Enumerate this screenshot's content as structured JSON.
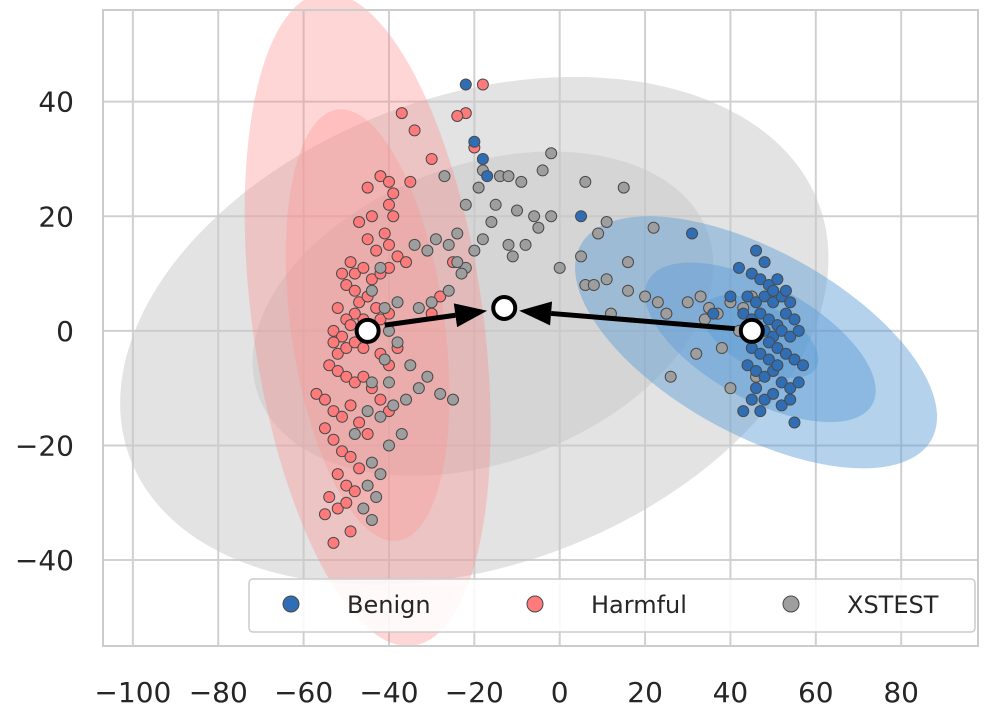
{
  "chart_data": {
    "type": "scatter",
    "title": "",
    "xlabel": "",
    "ylabel": "",
    "xlim": [
      -107,
      98
    ],
    "ylim": [
      -55,
      56
    ],
    "grid": true,
    "x_ticks": [
      -100,
      -80,
      -60,
      -40,
      -20,
      0,
      20,
      40,
      60,
      80
    ],
    "y_ticks": [
      -40,
      -20,
      0,
      20,
      40
    ],
    "x_tick_labels": [
      "−100",
      "−80",
      "−60",
      "−40",
      "−20",
      "0",
      "20",
      "40",
      "60",
      "80"
    ],
    "y_tick_labels": [
      "−40",
      "−20",
      "0",
      "20",
      "40"
    ],
    "legend": {
      "placement": "lower-right",
      "entries": [
        {
          "label": "Benign",
          "color": "#2F6EB5"
        },
        {
          "label": "Harmful",
          "color": "#FF7A7A"
        },
        {
          "label": "XSTEST",
          "color": "#9E9E9E"
        }
      ]
    },
    "ellipses": [
      {
        "series": "XSTEST",
        "center": [
          -20,
          0
        ],
        "width": 172,
        "height": 82,
        "angle": 20,
        "color": "#c8c8c8",
        "opacity": 0.5
      },
      {
        "series": "XSTEST",
        "center": [
          -18,
          3
        ],
        "width": 112,
        "height": 52,
        "angle": 20,
        "color": "#c8c8c8",
        "opacity": 0.5
      },
      {
        "series": "Harmful",
        "center": [
          -45,
          2
        ],
        "width": 54,
        "height": 115,
        "angle": 8,
        "color": "#FF8A8A",
        "opacity": 0.35
      },
      {
        "series": "Harmful",
        "center": [
          -45,
          1
        ],
        "width": 36,
        "height": 76,
        "angle": 8,
        "color": "#FF8A8A",
        "opacity": 0.3
      },
      {
        "series": "Benign",
        "center": [
          46,
          -2
        ],
        "width": 94,
        "height": 32,
        "angle": -29,
        "color": "#5B9BD5",
        "opacity": 0.45
      },
      {
        "series": "Benign",
        "center": [
          47,
          -2
        ],
        "width": 60,
        "height": 20,
        "angle": -29,
        "color": "#5B9BD5",
        "opacity": 0.45
      },
      {
        "series": "Benign",
        "center": [
          47,
          -1
        ],
        "width": 30,
        "height": 11,
        "angle": -29,
        "color": "#5B9BD5",
        "opacity": 0.45
      }
    ],
    "series": [
      {
        "name": "Harmful",
        "color": "#FF7A7A",
        "points": [
          [
            -18,
            43
          ],
          [
            -22,
            38
          ],
          [
            -24,
            37.5
          ],
          [
            -20,
            32
          ],
          [
            -37,
            38
          ],
          [
            -34,
            35
          ],
          [
            -42,
            27
          ],
          [
            -40,
            26
          ],
          [
            -39,
            24
          ],
          [
            -40,
            22
          ],
          [
            -44,
            20
          ],
          [
            -35,
            26
          ],
          [
            -30,
            30
          ],
          [
            -47,
            19
          ],
          [
            -45,
            16
          ],
          [
            -43,
            14
          ],
          [
            -40,
            15
          ],
          [
            -38,
            13
          ],
          [
            -36,
            12
          ],
          [
            -49,
            12
          ],
          [
            -48,
            10
          ],
          [
            -46,
            11
          ],
          [
            -44,
            9
          ],
          [
            -42,
            10
          ],
          [
            -40,
            11
          ],
          [
            -51,
            10
          ],
          [
            -50,
            8
          ],
          [
            -48,
            7
          ],
          [
            -47,
            5
          ],
          [
            -45,
            6
          ],
          [
            -43,
            4
          ],
          [
            -42,
            2
          ],
          [
            -40,
            3
          ],
          [
            -46,
            2
          ],
          [
            -48,
            3
          ],
          [
            -50,
            2
          ],
          [
            -52,
            4
          ],
          [
            -53,
            0
          ],
          [
            -49,
            1
          ],
          [
            -51,
            -1
          ],
          [
            -53,
            -2
          ],
          [
            -52,
            -4
          ],
          [
            -50,
            -3
          ],
          [
            -48,
            -2
          ],
          [
            -46,
            -3
          ],
          [
            -44,
            -1
          ],
          [
            -42,
            -4
          ],
          [
            -40,
            -6
          ],
          [
            -38,
            -3
          ],
          [
            -54,
            -6
          ],
          [
            -52,
            -7
          ],
          [
            -50,
            -8
          ],
          [
            -48,
            -9
          ],
          [
            -46,
            -8
          ],
          [
            -44,
            -10
          ],
          [
            -42,
            -12
          ],
          [
            -40,
            -14
          ],
          [
            -57,
            -11
          ],
          [
            -55,
            -12
          ],
          [
            -53,
            -14
          ],
          [
            -51,
            -15
          ],
          [
            -49,
            -13
          ],
          [
            -47,
            -16
          ],
          [
            -45,
            -18
          ],
          [
            -55,
            -17
          ],
          [
            -53,
            -19
          ],
          [
            -51,
            -21
          ],
          [
            -49,
            -22
          ],
          [
            -47,
            -24
          ],
          [
            -52,
            -25
          ],
          [
            -50,
            -27
          ],
          [
            -48,
            -28
          ],
          [
            -54,
            -29
          ],
          [
            -52,
            -31
          ],
          [
            -50,
            -30
          ],
          [
            -55,
            -32
          ],
          [
            -53,
            -37
          ],
          [
            -49,
            -35
          ],
          [
            -28,
            6
          ],
          [
            -30,
            3
          ],
          [
            -25,
            12
          ],
          [
            -41,
            17
          ],
          [
            -39,
            20
          ],
          [
            -45,
            25
          ]
        ]
      },
      {
        "name": "XSTEST",
        "color": "#9E9E9E",
        "points": [
          [
            -2,
            31
          ],
          [
            -4,
            28
          ],
          [
            -14,
            27
          ],
          [
            -12,
            27
          ],
          [
            -9,
            26
          ],
          [
            -18,
            28
          ],
          [
            6,
            26
          ],
          [
            15,
            25
          ],
          [
            -27,
            27
          ],
          [
            -22,
            22
          ],
          [
            -19,
            25
          ],
          [
            -15,
            22
          ],
          [
            -10,
            21
          ],
          [
            -6,
            20
          ],
          [
            -2,
            20
          ],
          [
            -5,
            18
          ],
          [
            -16,
            19
          ],
          [
            -24,
            17
          ],
          [
            -26,
            15
          ],
          [
            -29,
            16
          ],
          [
            -31,
            14
          ],
          [
            -34,
            15
          ],
          [
            -20,
            14
          ],
          [
            -22,
            11
          ],
          [
            -24,
            12
          ],
          [
            -23,
            10
          ],
          [
            -18,
            16
          ],
          [
            -12,
            15
          ],
          [
            -8,
            15
          ],
          [
            -11,
            13
          ],
          [
            0,
            11
          ],
          [
            5,
            13
          ],
          [
            9,
            17
          ],
          [
            11,
            19
          ],
          [
            22,
            18
          ],
          [
            -42,
            11
          ],
          [
            -44,
            7
          ],
          [
            -38,
            5
          ],
          [
            -33,
            4
          ],
          [
            -30,
            5
          ],
          [
            -26,
            7
          ],
          [
            -41,
            4
          ],
          [
            -40,
            0
          ],
          [
            -38,
            -2
          ],
          [
            -41,
            -5
          ],
          [
            -44,
            -9
          ],
          [
            -36,
            -12
          ],
          [
            -39,
            -13
          ],
          [
            -42,
            -15
          ],
          [
            -45,
            -14
          ],
          [
            -37,
            -18
          ],
          [
            -40,
            -20
          ],
          [
            -44,
            -23
          ],
          [
            -42,
            -25
          ],
          [
            -45,
            -27
          ],
          [
            -43,
            -29
          ],
          [
            -46,
            -31
          ],
          [
            -44,
            -33
          ],
          [
            -48,
            -18
          ],
          [
            -33,
            -10
          ],
          [
            -31,
            -8
          ],
          [
            -35,
            -6
          ],
          [
            -40,
            -9
          ],
          [
            -28,
            -11
          ],
          [
            -25,
            -12
          ],
          [
            6,
            8
          ],
          [
            11,
            9
          ],
          [
            16,
            7
          ],
          [
            20,
            6
          ],
          [
            23,
            5
          ],
          [
            25,
            3
          ],
          [
            30,
            5
          ],
          [
            33,
            6
          ],
          [
            35,
            4
          ],
          [
            34,
            2
          ],
          [
            37,
            3
          ],
          [
            40,
            5
          ],
          [
            43,
            4
          ],
          [
            45,
            6
          ],
          [
            42,
            0
          ],
          [
            38,
            -3
          ],
          [
            32,
            -4
          ],
          [
            26,
            -8
          ],
          [
            40,
            -10
          ],
          [
            46,
            -8
          ],
          [
            12,
            3
          ],
          [
            16,
            12
          ],
          [
            8,
            8
          ]
        ]
      },
      {
        "name": "Benign",
        "color": "#2F6EB5",
        "points": [
          [
            -22,
            43
          ],
          [
            -20,
            33
          ],
          [
            -18,
            30
          ],
          [
            -17,
            27
          ],
          [
            5,
            20
          ],
          [
            31,
            17
          ],
          [
            42,
            11
          ],
          [
            45,
            10
          ],
          [
            47,
            9
          ],
          [
            49,
            8
          ],
          [
            51,
            9
          ],
          [
            46,
            14
          ],
          [
            48,
            12
          ],
          [
            44,
            6
          ],
          [
            46,
            5
          ],
          [
            48,
            6
          ],
          [
            50,
            5
          ],
          [
            52,
            6
          ],
          [
            54,
            5
          ],
          [
            43,
            3
          ],
          [
            45,
            2
          ],
          [
            47,
            3
          ],
          [
            49,
            2
          ],
          [
            51,
            1
          ],
          [
            53,
            3
          ],
          [
            55,
            2
          ],
          [
            44,
            0
          ],
          [
            46,
            -1
          ],
          [
            48,
            0
          ],
          [
            50,
            -1
          ],
          [
            52,
            0
          ],
          [
            54,
            -1
          ],
          [
            56,
            0
          ],
          [
            45,
            -3
          ],
          [
            47,
            -4
          ],
          [
            49,
            -2
          ],
          [
            51,
            -3
          ],
          [
            53,
            -4
          ],
          [
            55,
            -5
          ],
          [
            57,
            -6
          ],
          [
            44,
            -6
          ],
          [
            46,
            -7
          ],
          [
            48,
            -8
          ],
          [
            50,
            -7
          ],
          [
            52,
            -9
          ],
          [
            54,
            -10
          ],
          [
            56,
            -9
          ],
          [
            46,
            -10
          ],
          [
            48,
            -12
          ],
          [
            50,
            -11
          ],
          [
            52,
            -13
          ],
          [
            54,
            -12
          ],
          [
            43,
            -14
          ],
          [
            47,
            -14
          ],
          [
            55,
            -16
          ],
          [
            36,
            3
          ],
          [
            40,
            6
          ],
          [
            50,
            7
          ],
          [
            53,
            7
          ],
          [
            49,
            -5
          ],
          [
            51,
            -6
          ],
          [
            45,
            -12
          ]
        ]
      }
    ],
    "centroids": [
      {
        "name": "Harmful centroid",
        "x": -45,
        "y": 0
      },
      {
        "name": "Benign centroid",
        "x": 45,
        "y": 0
      },
      {
        "name": "XSTEST centroid",
        "x": -13,
        "y": 4
      }
    ],
    "arrows": [
      {
        "name": "harmful-to-xstest",
        "from": [
          -41,
          1
        ],
        "to": [
          -17,
          3.5
        ]
      },
      {
        "name": "benign-to-xstest",
        "from": [
          41,
          0.4
        ],
        "to": [
          -9.5,
          3.5
        ]
      }
    ]
  }
}
